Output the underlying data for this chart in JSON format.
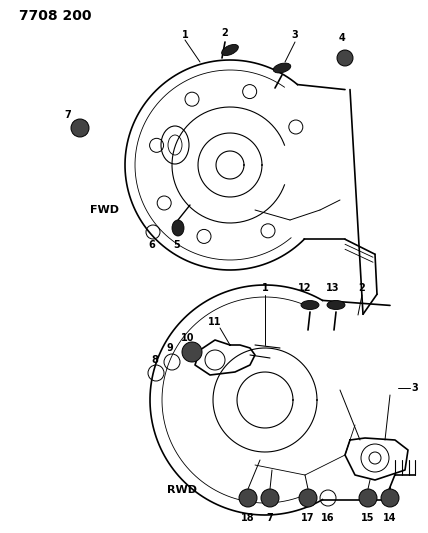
{
  "title_code": "7708 200",
  "background_color": "#ffffff",
  "text_color": "#000000",
  "line_color": "#000000",
  "fwd_label": "FWD",
  "rwd_label": "RWD",
  "title_fontsize": 10,
  "label_fontsize": 8,
  "callout_fontsize": 7,
  "fig_width": 4.28,
  "fig_height": 5.33,
  "fig_dpi": 100
}
